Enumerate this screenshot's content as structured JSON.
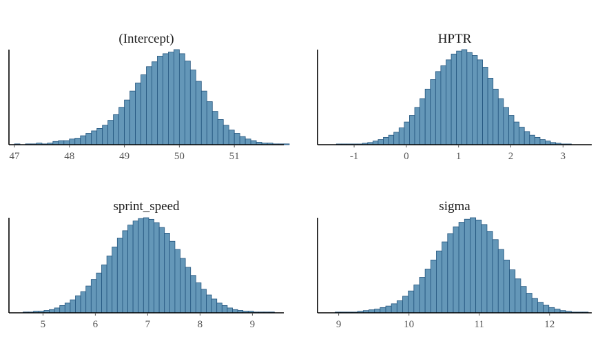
{
  "figure": {
    "bar_fill": "#6497b8",
    "bar_stroke": "#23557e"
  },
  "chart_data": [
    {
      "type": "bar",
      "title": "(Intercept)",
      "xlabel": "",
      "ylabel": "",
      "xlim": [
        46.9,
        51.9
      ],
      "bin_start": 47.0,
      "bin_width": 0.1,
      "ticks": [
        47,
        48,
        49,
        50,
        51
      ],
      "counts": [
        1,
        0,
        1,
        1,
        2,
        1,
        2,
        4,
        5,
        5,
        7,
        8,
        11,
        14,
        17,
        20,
        24,
        30,
        37,
        46,
        55,
        66,
        76,
        86,
        96,
        102,
        109,
        112,
        114,
        117,
        112,
        103,
        92,
        78,
        66,
        53,
        41,
        31,
        24,
        18,
        14,
        10,
        7,
        5,
        3,
        2,
        2,
        1,
        1,
        1
      ]
    },
    {
      "type": "bar",
      "title": "HPTR",
      "xlabel": "",
      "ylabel": "",
      "xlim": [
        -1.7,
        3.55
      ],
      "bin_start": -1.34,
      "bin_width": 0.1,
      "ticks": [
        -1,
        0,
        1,
        2,
        3
      ],
      "tick_labels": [
        "-1",
        "0",
        "1",
        "2",
        "3"
      ],
      "counts": [
        1,
        1,
        1,
        1,
        1,
        2,
        3,
        5,
        7,
        10,
        13,
        17,
        23,
        31,
        40,
        51,
        63,
        76,
        89,
        100,
        108,
        116,
        124,
        128,
        130,
        126,
        122,
        116,
        106,
        91,
        76,
        63,
        51,
        40,
        31,
        24,
        18,
        13,
        10,
        7,
        5,
        3,
        2,
        1,
        1
      ]
    },
    {
      "type": "bar",
      "title": "sprint_speed",
      "xlabel": "",
      "ylabel": "",
      "xlim": [
        4.35,
        9.6
      ],
      "bin_start": 4.62,
      "bin_width": 0.1,
      "ticks": [
        5,
        6,
        7,
        8,
        9
      ],
      "counts": [
        1,
        1,
        2,
        2,
        3,
        4,
        6,
        9,
        12,
        16,
        21,
        26,
        33,
        41,
        49,
        59,
        70,
        81,
        92,
        101,
        108,
        113,
        116,
        117,
        115,
        111,
        105,
        98,
        88,
        78,
        67,
        56,
        46,
        37,
        29,
        22,
        17,
        12,
        9,
        6,
        4,
        3,
        2,
        2,
        1,
        1,
        1,
        1
      ]
    },
    {
      "type": "bar",
      "title": "sigma",
      "xlabel": "",
      "ylabel": "",
      "xlim": [
        8.7,
        12.6
      ],
      "bin_start": 8.95,
      "bin_width": 0.08,
      "ticks": [
        9,
        10,
        11,
        12
      ],
      "counts": [
        1,
        1,
        1,
        1,
        2,
        3,
        4,
        5,
        7,
        9,
        12,
        16,
        22,
        29,
        37,
        47,
        58,
        70,
        82,
        94,
        105,
        114,
        120,
        124,
        126,
        123,
        117,
        108,
        97,
        84,
        70,
        57,
        45,
        35,
        26,
        19,
        14,
        10,
        7,
        5,
        3,
        2,
        1,
        1,
        1
      ]
    }
  ]
}
